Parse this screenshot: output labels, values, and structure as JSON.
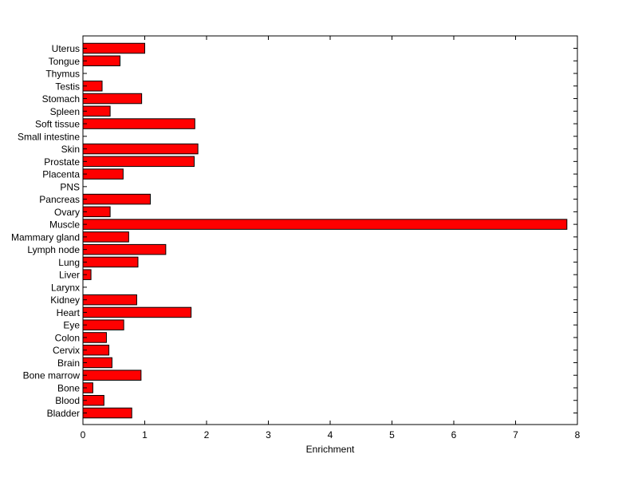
{
  "chart_data": {
    "type": "bar",
    "orientation": "horizontal",
    "title": "",
    "xlabel": "Enrichment",
    "ylabel": "",
    "xlim": [
      0,
      8
    ],
    "xticks": [
      0,
      1,
      2,
      3,
      4,
      5,
      6,
      7,
      8
    ],
    "grid": false,
    "bar_color": "#ff0000",
    "edge_color": "#000000",
    "categories": [
      "Bladder",
      "Blood",
      "Bone",
      "Bone marrow",
      "Brain",
      "Cervix",
      "Colon",
      "Eye",
      "Heart",
      "Kidney",
      "Larynx",
      "Liver",
      "Lung",
      "Lymph node",
      "Mammary gland",
      "Muscle",
      "Ovary",
      "Pancreas",
      "PNS",
      "Placenta",
      "Prostate",
      "Skin",
      "Small intestine",
      "Soft tissue",
      "Spleen",
      "Stomach",
      "Testis",
      "Thymus",
      "Tongue",
      "Uterus"
    ],
    "values": [
      0.79,
      0.34,
      0.16,
      0.94,
      0.47,
      0.42,
      0.38,
      0.66,
      1.75,
      0.87,
      0.0,
      0.13,
      0.89,
      1.34,
      0.74,
      7.83,
      0.44,
      1.09,
      0.0,
      0.65,
      1.8,
      1.86,
      0.0,
      1.81,
      0.44,
      0.95,
      0.31,
      0.0,
      0.6,
      1.0
    ]
  }
}
